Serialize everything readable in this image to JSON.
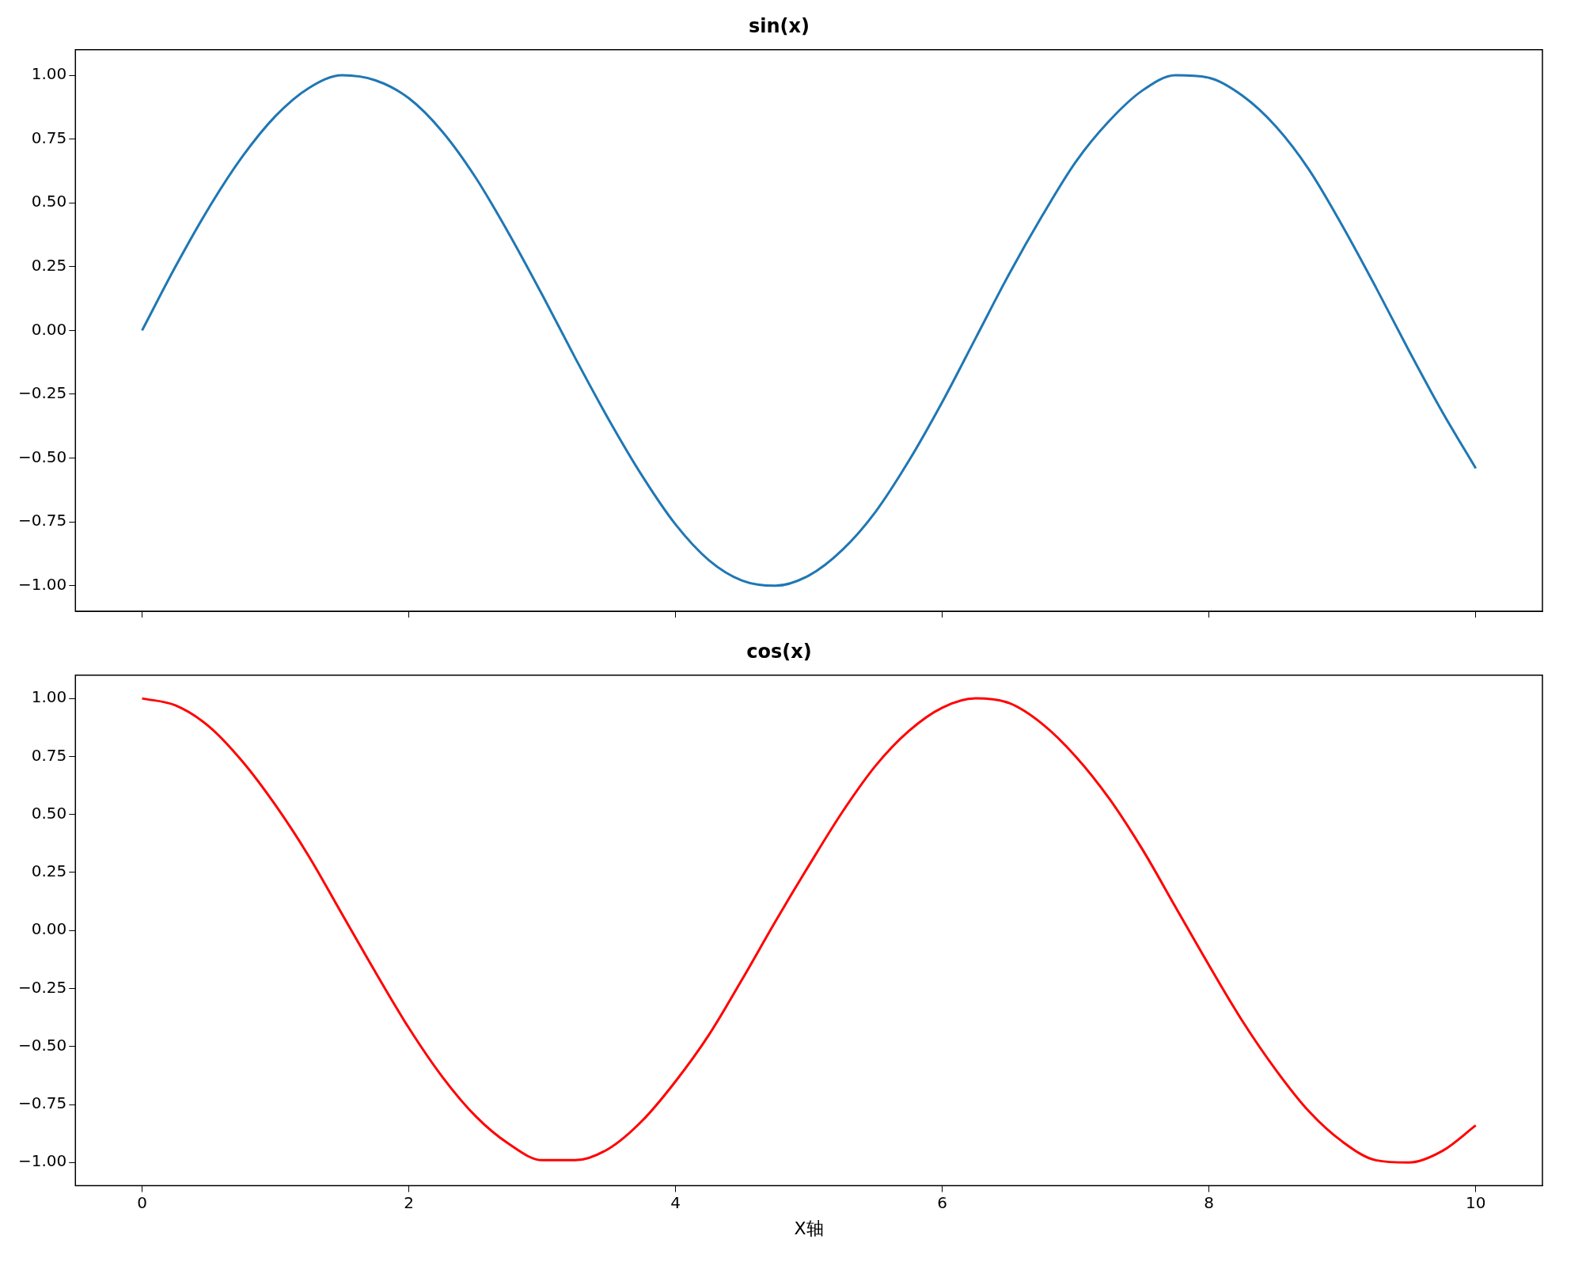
{
  "chart_data": [
    {
      "type": "line",
      "title": "sin(x)",
      "x": [
        0,
        0.25,
        0.5,
        0.75,
        1,
        1.25,
        1.5,
        1.75,
        2,
        2.25,
        2.5,
        2.75,
        3,
        3.25,
        3.5,
        3.75,
        4,
        4.25,
        4.5,
        4.75,
        5,
        5.25,
        5.5,
        5.75,
        6,
        6.25,
        6.5,
        6.75,
        7,
        7.25,
        7.5,
        7.75,
        8,
        8.25,
        8.5,
        8.75,
        9,
        9.25,
        9.5,
        9.75,
        10
      ],
      "series": [
        {
          "color": "#1f77b4",
          "values": [
            0,
            0.25,
            0.48,
            0.68,
            0.84,
            0.95,
            1.0,
            0.98,
            0.91,
            0.78,
            0.6,
            0.38,
            0.14,
            -0.11,
            -0.35,
            -0.57,
            -0.76,
            -0.9,
            -0.98,
            -1.0,
            -0.96,
            -0.86,
            -0.71,
            -0.51,
            -0.28,
            -0.03,
            0.22,
            0.45,
            0.66,
            0.82,
            0.94,
            1.0,
            0.99,
            0.92,
            0.8,
            0.63,
            0.41,
            0.17,
            -0.08,
            -0.32,
            -0.54
          ]
        }
      ],
      "xlim": [
        -0.5,
        10.5
      ],
      "xticks": [
        0,
        2,
        4,
        6,
        8,
        10
      ],
      "ylim": [
        -1.1,
        1.1
      ],
      "yticks": [
        {
          "value": -1,
          "label": "−1.00"
        },
        {
          "value": -0.75,
          "label": "−0.75"
        },
        {
          "value": -0.5,
          "label": "−0.50"
        },
        {
          "value": -0.25,
          "label": "−0.25"
        },
        {
          "value": 0,
          "label": "0.00"
        },
        {
          "value": 0.25,
          "label": "0.25"
        },
        {
          "value": 0.5,
          "label": "0.50"
        },
        {
          "value": 0.75,
          "label": "0.75"
        },
        {
          "value": 1,
          "label": "1.00"
        }
      ],
      "tick_labels": "y",
      "grid": false,
      "legend": false,
      "marker": "none",
      "line_style": "solid"
    },
    {
      "type": "line",
      "title": "cos(x)",
      "xlabel": "X轴",
      "x": [
        0,
        0.25,
        0.5,
        0.75,
        1,
        1.25,
        1.5,
        1.75,
        2,
        2.25,
        2.5,
        2.75,
        3,
        3.25,
        3.5,
        3.75,
        4,
        4.25,
        4.5,
        4.75,
        5,
        5.25,
        5.5,
        5.75,
        6,
        6.25,
        6.5,
        6.75,
        7,
        7.25,
        7.5,
        7.75,
        8,
        8.25,
        8.5,
        8.75,
        9,
        9.25,
        9.5,
        9.75,
        10
      ],
      "series": [
        {
          "color": "#ff0000",
          "values": [
            1.0,
            0.97,
            0.88,
            0.73,
            0.54,
            0.32,
            0.07,
            -0.18,
            -0.42,
            -0.63,
            -0.8,
            -0.92,
            -0.99,
            -0.99,
            -0.94,
            -0.82,
            -0.65,
            -0.45,
            -0.21,
            0.04,
            0.28,
            0.51,
            0.71,
            0.86,
            0.96,
            1.0,
            0.98,
            0.89,
            0.75,
            0.57,
            0.35,
            0.1,
            -0.15,
            -0.39,
            -0.6,
            -0.78,
            -0.91,
            -0.99,
            -1.0,
            -0.95,
            -0.84
          ]
        }
      ],
      "xlim": [
        -0.5,
        10.5
      ],
      "xticks": [
        0,
        2,
        4,
        6,
        8,
        10
      ],
      "ylim": [
        -1.1,
        1.1
      ],
      "yticks": [
        {
          "value": -1,
          "label": "−1.00"
        },
        {
          "value": -0.75,
          "label": "−0.75"
        },
        {
          "value": -0.5,
          "label": "−0.50"
        },
        {
          "value": -0.25,
          "label": "−0.25"
        },
        {
          "value": 0,
          "label": "0.00"
        },
        {
          "value": 0.25,
          "label": "0.25"
        },
        {
          "value": 0.5,
          "label": "0.50"
        },
        {
          "value": 0.75,
          "label": "0.75"
        },
        {
          "value": 1,
          "label": "1.00"
        }
      ],
      "grid": false,
      "legend": false,
      "marker": "none",
      "line_style": "solid"
    }
  ]
}
